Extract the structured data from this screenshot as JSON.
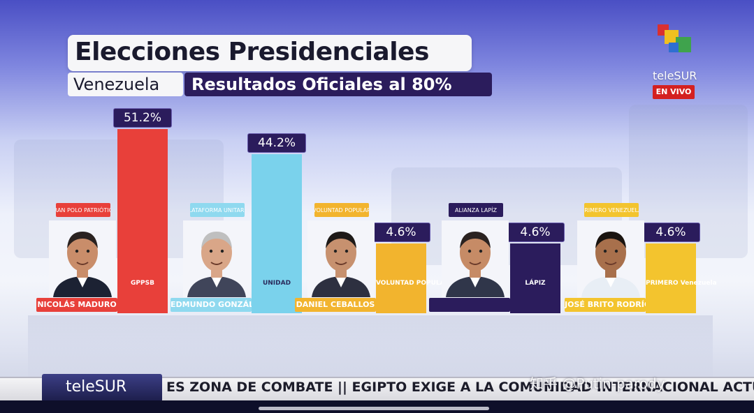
{
  "header": {
    "title": "Elecciones Presidenciales",
    "country": "Venezuela",
    "subtitle": "Resultados Oficiales al 80%"
  },
  "broadcaster": {
    "logo_text": "teleSUR",
    "live_label": "EN VIVO"
  },
  "chart_data": {
    "type": "bar",
    "categories": [
      "NICOLÁS MADURO",
      "EDMUNDO GONZÁLEZ",
      "DANIEL CEBALLOS",
      "",
      "JOSÉ BRITO RODRÍGUEZ"
    ],
    "values": [
      51.2,
      44.2,
      4.6,
      4.6,
      4.6
    ],
    "value_labels": [
      "51.2%",
      "44.2%",
      "4.6%",
      "4.6%",
      "4.6%"
    ],
    "parties": [
      "GRAN POLO PATRIÓTICO",
      "PLATAFORMA UNITARIA",
      "VOLUNTAD POPULAR",
      "ALIANZA LAPÍZ",
      "PRIMERO VENEZUELA"
    ],
    "bar_logos": [
      "GPPSB",
      "UNIDAD",
      "VOLUNTAD POPULAR",
      "LÁPIZ",
      "PRIMERO Venezuela"
    ],
    "colors": [
      "#e8403a",
      "#7ad2ec",
      "#f2b42e",
      "#2b1c5c",
      "#f3c42e"
    ],
    "tag_colors": [
      "#e8403a",
      "#8fd9ef",
      "#f2b42e",
      "#2b1c5c",
      "#f3c42e"
    ],
    "title": "Elecciones Presidenciales",
    "xlabel": "",
    "ylabel": "",
    "ylim": [
      0,
      51.2
    ]
  },
  "ticker": {
    "logo": "teleSUR",
    "text": "ES ZONA DE COMBATE  ||  EGIPTO EXIGE A LA COMUNIDAD INTERNACIONAL ACTUAR"
  },
  "watermark": "知乎 @Putin-parody"
}
